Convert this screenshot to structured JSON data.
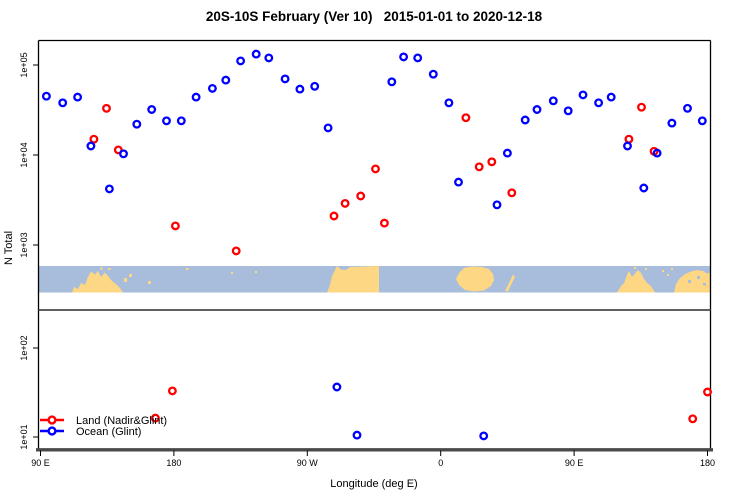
{
  "title": "20S-10S February (Ver 10)   2015-01-01 to 2020-12-18",
  "axes": {
    "xlabel": "Longitude (deg E)",
    "ylabel": "N Total",
    "x_ticks": [
      "90 E",
      "180",
      "90 W",
      "0",
      "90 E",
      "180"
    ],
    "y_ticks": [
      "1e+05",
      "1e+04",
      "1e+03",
      "1e+02",
      "1e+01"
    ]
  },
  "legend": [
    {
      "label": "Land (Nadir&Glint)",
      "color": "#ff0000"
    },
    {
      "label": "Ocean (Glint)",
      "color": "#0000ff"
    }
  ],
  "colors": {
    "land_series": "#ff0000",
    "ocean_series": "#0000ff",
    "map_ocean": "#a7bddb",
    "map_land": "#fdd783",
    "axis_gray": "#4a4a4a",
    "box_black": "#000000"
  },
  "chart_data": {
    "type": "scatter",
    "title": "20S-10S February (Ver 10)   2015-01-01 to 2020-12-18",
    "xlabel": "Longitude (deg E)",
    "ylabel": "N Total",
    "y_scale": "log10",
    "x_axis": {
      "start_deg": 90,
      "end_deg": 540,
      "tick_lons": [
        90,
        180,
        270,
        360,
        450,
        540
      ]
    },
    "y_axis": {
      "tick_values": [
        100000,
        10000,
        1000,
        100,
        10
      ]
    },
    "map_strip": "world land mask 20S-10S, ocean blue, land yellow, spanning 90E eastward 450 degrees",
    "legend_position": "bottom-left",
    "series": [
      {
        "name": "Land (Nadir&Glint)",
        "color": "#ff0000",
        "points": [
          [
            126,
            15000
          ],
          [
            134.5,
            33000
          ],
          [
            142.5,
            11400
          ],
          [
            167.5,
            16.3
          ],
          [
            179,
            33
          ],
          [
            181,
            1630
          ],
          [
            222,
            860
          ],
          [
            288,
            2100
          ],
          [
            295.5,
            2900
          ],
          [
            306,
            3500
          ],
          [
            316,
            7000
          ],
          [
            322,
            1750
          ],
          [
            377,
            26000
          ],
          [
            386,
            7400
          ],
          [
            394.5,
            8400
          ],
          [
            408,
            3800
          ],
          [
            487,
            15000
          ],
          [
            495.5,
            34000
          ],
          [
            504,
            11000
          ],
          [
            530,
            16
          ],
          [
            540,
            32
          ]
        ]
      },
      {
        "name": "Ocean (Glint)",
        "color": "#0000ff",
        "points": [
          [
            94,
            45000
          ],
          [
            105,
            38000
          ],
          [
            115,
            44000
          ],
          [
            124,
            12600
          ],
          [
            136.5,
            4200
          ],
          [
            146,
            10300
          ],
          [
            155,
            22000
          ],
          [
            165,
            32000
          ],
          [
            175,
            24000
          ],
          [
            185,
            24000
          ],
          [
            195,
            44000
          ],
          [
            206,
            55000
          ],
          [
            215,
            68000
          ],
          [
            225,
            111000
          ],
          [
            235.5,
            132000
          ],
          [
            244,
            120000
          ],
          [
            255,
            70000
          ],
          [
            265,
            54000
          ],
          [
            275,
            58000
          ],
          [
            284,
            20000
          ],
          [
            290,
            36.5
          ],
          [
            303.5,
            10.5
          ],
          [
            327,
            65000
          ],
          [
            335,
            123000
          ],
          [
            344.5,
            120000
          ],
          [
            355,
            79000
          ],
          [
            365.5,
            38000
          ],
          [
            372,
            5000
          ],
          [
            389,
            10.3
          ],
          [
            398,
            2800
          ],
          [
            405,
            10500
          ],
          [
            417,
            24500
          ],
          [
            425,
            32000
          ],
          [
            436,
            40000
          ],
          [
            446,
            31000
          ],
          [
            456,
            46500
          ],
          [
            466.5,
            38000
          ],
          [
            475,
            44000
          ],
          [
            486,
            12600
          ],
          [
            497,
            4300
          ],
          [
            506,
            10500
          ],
          [
            516,
            22600
          ],
          [
            526.5,
            33000
          ],
          [
            536.5,
            24000
          ]
        ]
      }
    ]
  }
}
